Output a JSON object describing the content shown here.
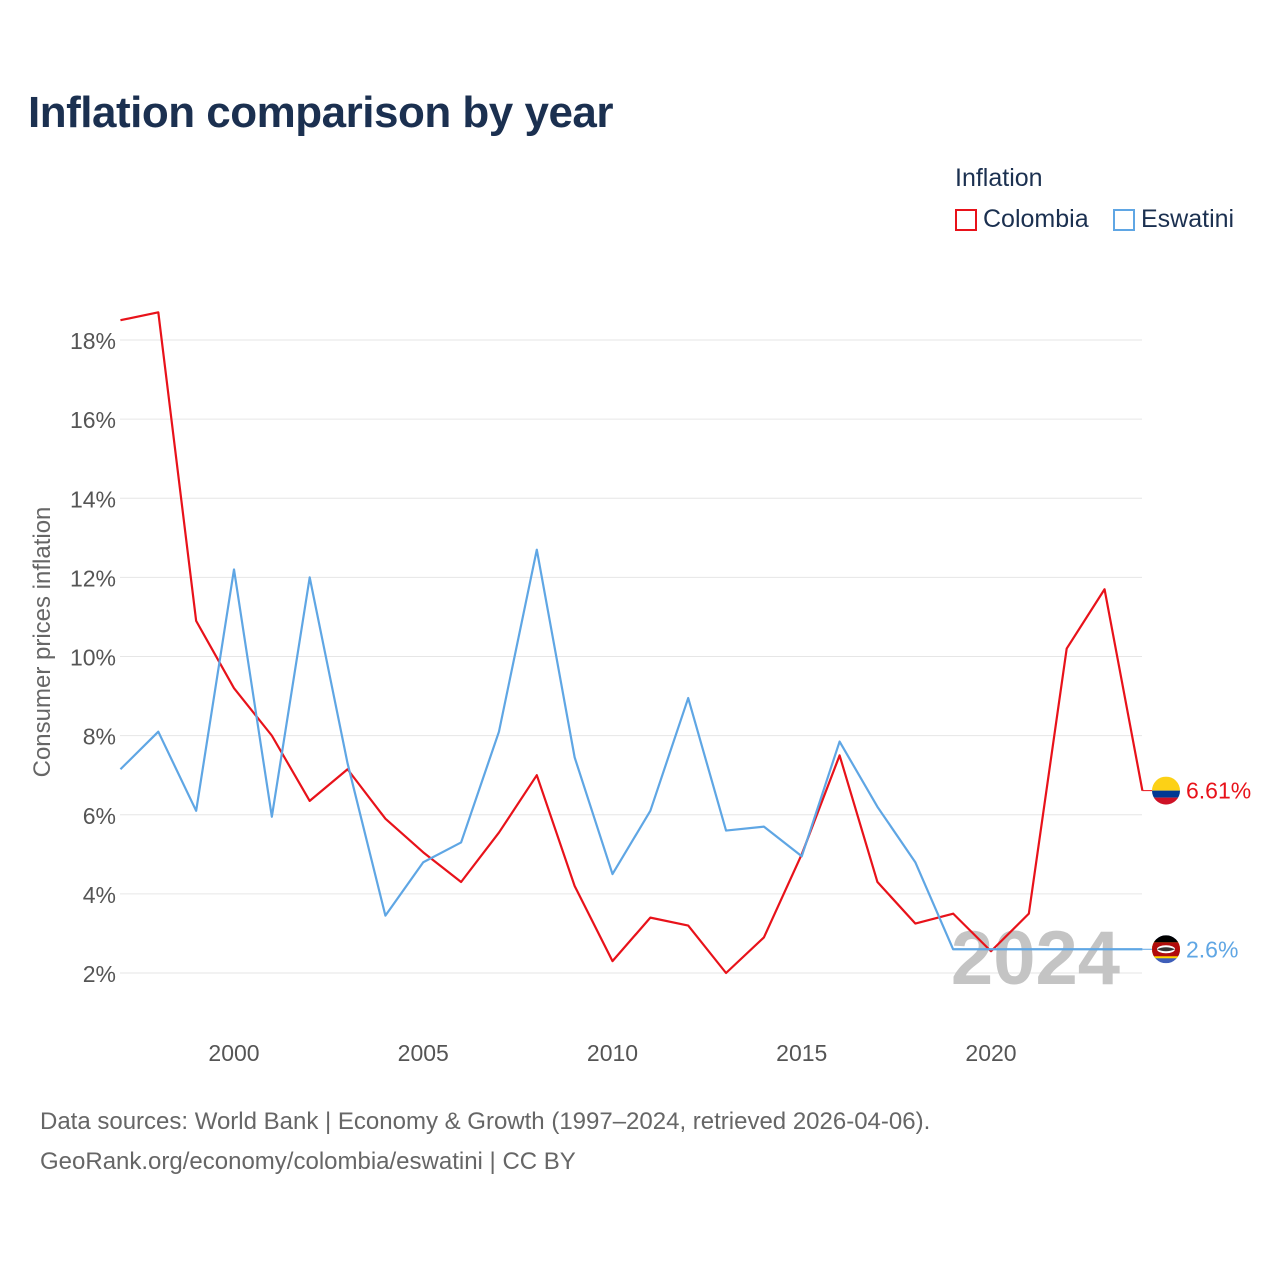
{
  "title": "Inflation comparison by year",
  "legend": {
    "title": "Inflation",
    "items": [
      {
        "label": "Colombia",
        "color": "#e8121a"
      },
      {
        "label": "Eswatini",
        "color": "#5fa6e4"
      }
    ]
  },
  "chart_data": {
    "type": "line",
    "title": "Inflation comparison by year",
    "xlabel": "",
    "ylabel": "Consumer prices inflation",
    "ylim": [
      1,
      19.2
    ],
    "xlim": [
      1997,
      2024
    ],
    "yticks": [
      2,
      4,
      6,
      8,
      10,
      12,
      14,
      16,
      18
    ],
    "ytick_labels": [
      "2%",
      "4%",
      "6%",
      "8%",
      "10%",
      "12%",
      "14%",
      "16%",
      "18%"
    ],
    "xticks": [
      2000,
      2005,
      2010,
      2015,
      2020
    ],
    "xtick_labels": [
      "2000",
      "2005",
      "2010",
      "2015",
      "2020"
    ],
    "grid": true,
    "x": [
      1997,
      1998,
      1999,
      2000,
      2001,
      2002,
      2003,
      2004,
      2005,
      2006,
      2007,
      2008,
      2009,
      2010,
      2011,
      2012,
      2013,
      2014,
      2015,
      2016,
      2017,
      2018,
      2019,
      2020,
      2021,
      2022,
      2023,
      2024
    ],
    "series": [
      {
        "name": "Colombia",
        "color": "#e8121a",
        "values": [
          18.5,
          18.7,
          10.9,
          9.2,
          8.0,
          6.35,
          7.15,
          5.9,
          5.05,
          4.3,
          5.55,
          7.0,
          4.2,
          2.3,
          3.4,
          3.2,
          2.0,
          2.9,
          5.0,
          7.5,
          4.3,
          3.25,
          3.5,
          2.55,
          3.5,
          10.2,
          11.7,
          6.61
        ],
        "end_label": "6.61%"
      },
      {
        "name": "Eswatini",
        "color": "#5fa6e4",
        "values": [
          7.15,
          8.1,
          6.1,
          12.2,
          5.95,
          12.0,
          7.3,
          3.45,
          4.8,
          5.3,
          8.1,
          12.7,
          7.45,
          4.5,
          6.1,
          8.95,
          5.6,
          5.7,
          4.95,
          7.85,
          6.2,
          4.8,
          2.6,
          2.6,
          2.6,
          2.6,
          2.6,
          2.6
        ],
        "end_label": "2.6%"
      }
    ],
    "year_watermark": "2024"
  },
  "source": {
    "line1": "Data sources: World Bank | Economy & Growth (1997–2024, retrieved 2026-04-06).",
    "line2": "GeoRank.org/economy/colombia/eswatini | CC BY"
  }
}
